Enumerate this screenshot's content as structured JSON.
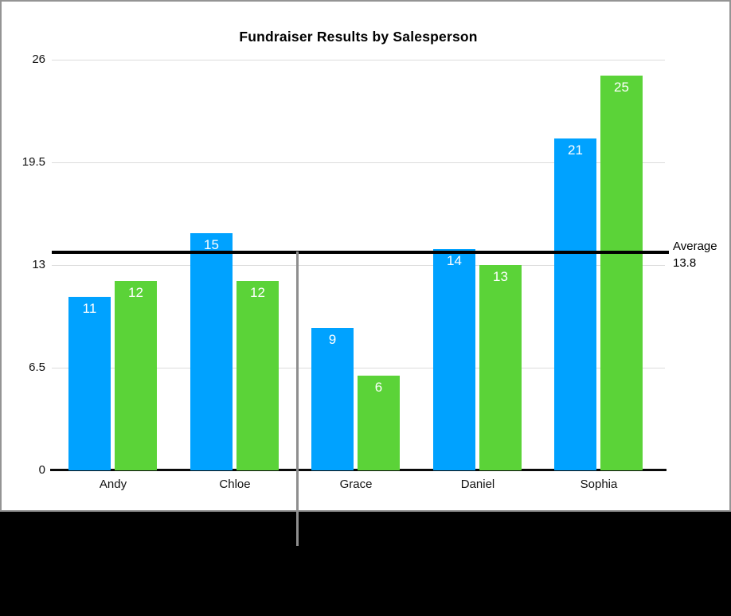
{
  "figure": {
    "panel_background": "#ffffff",
    "panel_border_color": "#949494",
    "lower_band_color": "#000000",
    "callout_line_color": "#8e8e8e",
    "gridline_color": "#dcdcdc",
    "axis_color": "#0a0a0a",
    "text_color": "#111111"
  },
  "chart_data": {
    "type": "bar",
    "title": "Fundraiser Results by Salesperson",
    "categories": [
      "Andy",
      "Chloe",
      "Grace",
      "Daniel",
      "Sophia"
    ],
    "series": [
      {
        "color": "#00a2ff",
        "values": [
          11,
          15,
          9,
          14,
          21
        ]
      },
      {
        "color": "#5bd338",
        "values": [
          12,
          12,
          6,
          13,
          25
        ]
      }
    ],
    "y_ticks": [
      26,
      19.5,
      13,
      6.5,
      0
    ],
    "ylim": [
      0,
      26
    ],
    "grid": true,
    "legend": "none",
    "bar_value_labels_shown": true,
    "bar_value_label_color": "#ffffff",
    "average_line": {
      "value": 13.8,
      "color": "#000000",
      "label_line1": "Average",
      "label_line2": "13.8"
    }
  }
}
